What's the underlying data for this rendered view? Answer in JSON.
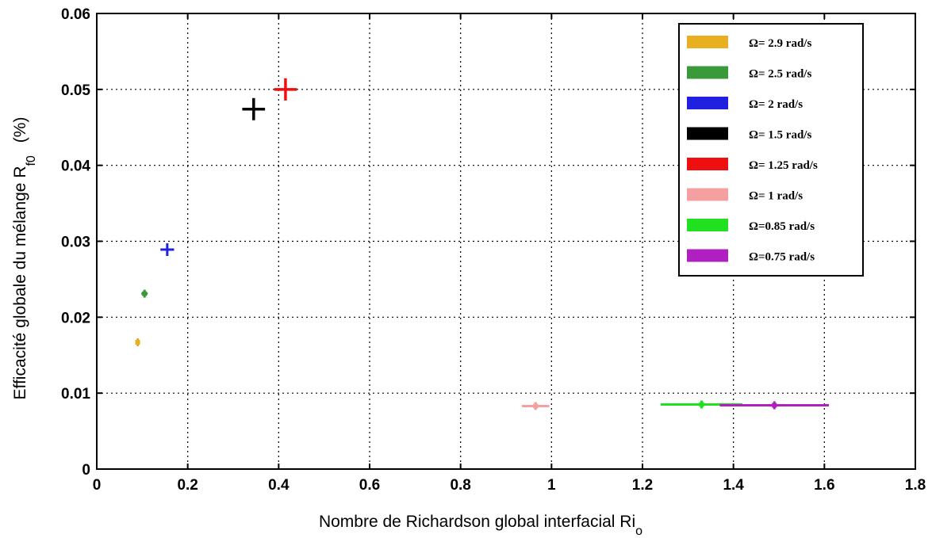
{
  "chart_data": {
    "type": "scatter",
    "title": "",
    "xlabel": "Nombre de Richardson global interfacial Ri",
    "xlabel_subscript": "o",
    "ylabel": "Efficacité globale du mélange R",
    "ylabel_subscript": "f0",
    "ylabel_unit": "(%)",
    "xlim": [
      0,
      1.8
    ],
    "ylim": [
      0,
      0.06
    ],
    "xticks": [
      "0",
      "0.2",
      "0.4",
      "0.6",
      "0.8",
      "1",
      "1.2",
      "1.4",
      "1.6",
      "1.8"
    ],
    "yticks": [
      "0",
      "0.01",
      "0.02",
      "0.03",
      "0.04",
      "0.05",
      "0.06"
    ],
    "grid": true,
    "legend_position": "top-right",
    "series": [
      {
        "name": "Ω= 2.9 rad/s",
        "color": "#e8b020",
        "x": 0.09,
        "y": 0.0167,
        "x_err": [
          0.085,
          0.095
        ]
      },
      {
        "name": "Ω= 2.5 rad/s",
        "color": "#3a9a3a",
        "x": 0.105,
        "y": 0.0231,
        "x_err": [
          0.098,
          0.112
        ]
      },
      {
        "name": "Ω= 2 rad/s",
        "color": "#2020e0",
        "x": 0.155,
        "y": 0.0289,
        "x_err": [
          0.14,
          0.17
        ]
      },
      {
        "name": "Ω= 1.5 rad/s",
        "color": "#000000",
        "x": 0.345,
        "y": 0.0474,
        "x_err": [
          0.32,
          0.37
        ]
      },
      {
        "name": "Ω= 1.25 rad/s",
        "color": "#ee1010",
        "x": 0.415,
        "y": 0.05,
        "x_err": [
          0.39,
          0.44
        ]
      },
      {
        "name": "Ω= 1 rad/s",
        "color": "#f4a0a0",
        "x": 0.965,
        "y": 0.0083,
        "x_err": [
          0.935,
          0.995
        ]
      },
      {
        "name": "Ω=0.85 rad/s",
        "color": "#20e020",
        "x": 1.33,
        "y": 0.0085,
        "x_err": [
          1.24,
          1.42
        ]
      },
      {
        "name": "Ω=0.75 rad/s",
        "color": "#b020c0",
        "x": 1.49,
        "y": 0.0084,
        "x_err": [
          1.37,
          1.61
        ]
      }
    ]
  }
}
